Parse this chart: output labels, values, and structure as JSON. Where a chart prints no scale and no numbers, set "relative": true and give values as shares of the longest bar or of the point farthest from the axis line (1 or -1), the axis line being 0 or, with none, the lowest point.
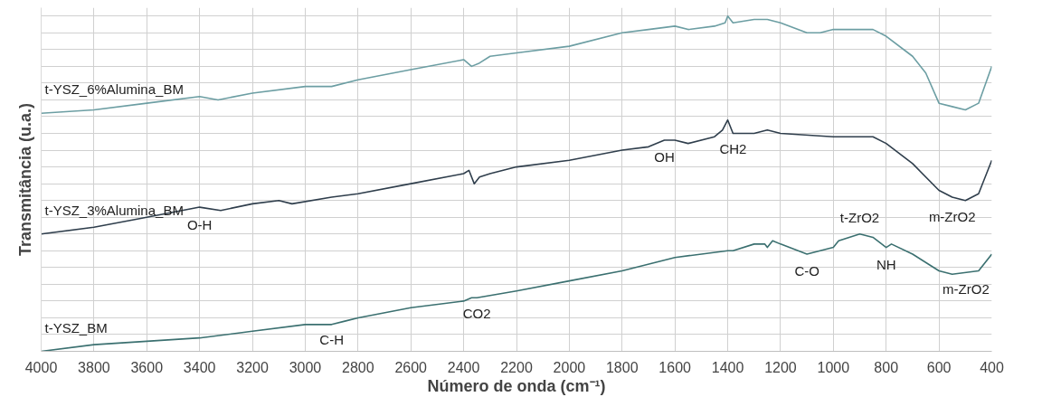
{
  "chart_data": {
    "type": "line",
    "relative": true,
    "xlabel": "Número de onda (cm⁻¹)",
    "ylabel": "Transmitância (u.a.)",
    "xlim": [
      4000,
      400
    ],
    "xticks": [
      4000,
      3800,
      3600,
      3400,
      3200,
      3000,
      2800,
      2600,
      2400,
      2200,
      2000,
      1800,
      1600,
      1400,
      1200,
      1000,
      800,
      600,
      400
    ],
    "grid": true,
    "legend": false,
    "marker": "none",
    "line_style": "solid",
    "series": [
      {
        "name": "t-YSZ_6%Alumina_BM",
        "color": "#6c9ea3",
        "x": [
          4000,
          3800,
          3600,
          3400,
          3330,
          3200,
          3000,
          2900,
          2800,
          2600,
          2400,
          2370,
          2340,
          2300,
          2200,
          2000,
          1800,
          1700,
          1600,
          1550,
          1450,
          1410,
          1400,
          1380,
          1300,
          1250,
          1200,
          1100,
          1050,
          1000,
          900,
          850,
          800,
          700,
          650,
          600,
          550,
          500,
          450,
          400
        ],
        "values": [
          0.71,
          0.72,
          0.74,
          0.76,
          0.75,
          0.77,
          0.79,
          0.79,
          0.81,
          0.84,
          0.87,
          0.85,
          0.86,
          0.88,
          0.89,
          0.91,
          0.95,
          0.96,
          0.97,
          0.96,
          0.97,
          0.98,
          1.0,
          0.98,
          0.99,
          0.99,
          0.98,
          0.95,
          0.95,
          0.96,
          0.96,
          0.96,
          0.94,
          0.88,
          0.83,
          0.74,
          0.73,
          0.72,
          0.74,
          0.85
        ]
      },
      {
        "name": "t-YSZ_3%Alumina_BM",
        "color": "#2f3e4c",
        "x": [
          4000,
          3800,
          3600,
          3400,
          3320,
          3200,
          3100,
          3050,
          2900,
          2800,
          2600,
          2400,
          2380,
          2360,
          2340,
          2300,
          2200,
          2000,
          1800,
          1700,
          1640,
          1600,
          1550,
          1450,
          1420,
          1400,
          1380,
          1300,
          1250,
          1200,
          1000,
          850,
          800,
          700,
          600,
          550,
          500,
          450,
          400
        ],
        "values": [
          0.35,
          0.37,
          0.4,
          0.43,
          0.42,
          0.44,
          0.45,
          0.44,
          0.46,
          0.47,
          0.5,
          0.53,
          0.54,
          0.5,
          0.52,
          0.53,
          0.55,
          0.57,
          0.6,
          0.61,
          0.63,
          0.63,
          0.62,
          0.64,
          0.66,
          0.69,
          0.65,
          0.65,
          0.66,
          0.65,
          0.64,
          0.64,
          0.62,
          0.56,
          0.48,
          0.46,
          0.45,
          0.47,
          0.57
        ]
      },
      {
        "name": "t-YSZ_BM",
        "color": "#3b7070",
        "x": [
          4000,
          3800,
          3600,
          3400,
          3200,
          3000,
          2900,
          2850,
          2800,
          2600,
          2400,
          2370,
          2350,
          2200,
          2000,
          1800,
          1600,
          1400,
          1380,
          1300,
          1260,
          1250,
          1230,
          1200,
          1100,
          1050,
          1000,
          980,
          900,
          850,
          800,
          780,
          700,
          600,
          550,
          450,
          400
        ],
        "values": [
          0.0,
          0.02,
          0.03,
          0.04,
          0.06,
          0.08,
          0.08,
          0.09,
          0.1,
          0.13,
          0.15,
          0.16,
          0.16,
          0.18,
          0.21,
          0.24,
          0.28,
          0.3,
          0.3,
          0.32,
          0.32,
          0.31,
          0.33,
          0.32,
          0.29,
          0.3,
          0.31,
          0.33,
          0.35,
          0.34,
          0.31,
          0.32,
          0.29,
          0.24,
          0.23,
          0.24,
          0.29
        ]
      }
    ],
    "annotations": [
      {
        "text": "O-H",
        "x": 3400,
        "y": 0.43
      },
      {
        "text": "OH",
        "x": 1640,
        "y": 0.63
      },
      {
        "text": "CH2",
        "x": 1380,
        "y": 0.65
      },
      {
        "text": "m-ZrO2",
        "x": 550,
        "y": 0.46
      },
      {
        "text": "t-ZrO2",
        "x": 900,
        "y": 0.35
      },
      {
        "text": "C-O",
        "x": 1100,
        "y": 0.29
      },
      {
        "text": "NH",
        "x": 800,
        "y": 0.31
      },
      {
        "text": "m-ZrO2",
        "x": 450,
        "y": 0.24
      },
      {
        "text": "CO2",
        "x": 2350,
        "y": 0.16
      },
      {
        "text": "C-H",
        "x": 2900,
        "y": 0.08
      }
    ]
  }
}
